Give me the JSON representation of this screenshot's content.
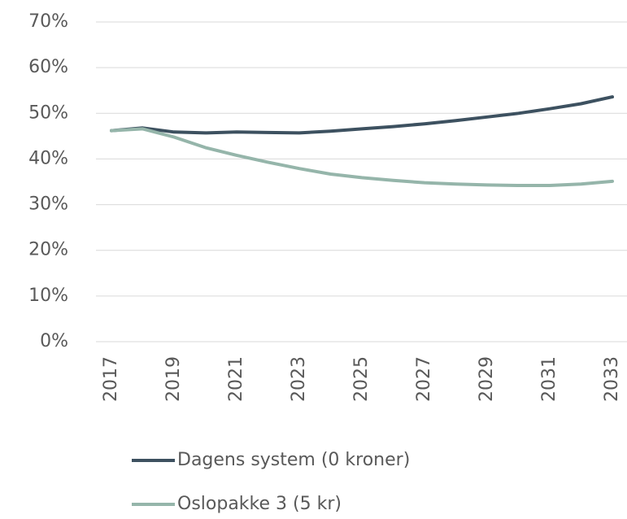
{
  "chart_data": {
    "type": "line",
    "x": [
      2017,
      2018,
      2019,
      2020,
      2021,
      2022,
      2023,
      2024,
      2025,
      2026,
      2027,
      2028,
      2029,
      2030,
      2031,
      2032,
      2033
    ],
    "xlim": [
      2017,
      2033
    ],
    "xticks": [
      2017,
      2019,
      2021,
      2023,
      2025,
      2027,
      2029,
      2031,
      2033
    ],
    "ylim": [
      0,
      70
    ],
    "yticks": [
      {
        "value": 0,
        "label": "0%"
      },
      {
        "value": 10,
        "label": "10%"
      },
      {
        "value": 20,
        "label": "20%"
      },
      {
        "value": 30,
        "label": "30%"
      },
      {
        "value": 40,
        "label": "40%"
      },
      {
        "value": 50,
        "label": "50%"
      },
      {
        "value": 60,
        "label": "60%"
      },
      {
        "value": 70,
        "label": "70%"
      }
    ],
    "grid": true,
    "legend": "bottom",
    "series": [
      {
        "name": "Dagens system (0 kroner)",
        "color": "#3d5160",
        "values": [
          46.2,
          46.8,
          45.9,
          45.7,
          45.9,
          45.8,
          45.7,
          46.1,
          46.6,
          47.1,
          47.7,
          48.4,
          49.2,
          50.0,
          51.0,
          52.1,
          53.6
        ]
      },
      {
        "name": "Oslopakke 3 (5 kr)",
        "color": "#95b5aa",
        "values": [
          46.2,
          46.6,
          44.8,
          42.5,
          40.8,
          39.3,
          37.9,
          36.7,
          35.9,
          35.3,
          34.8,
          34.5,
          34.3,
          34.2,
          34.2,
          34.5,
          35.1
        ]
      }
    ]
  }
}
